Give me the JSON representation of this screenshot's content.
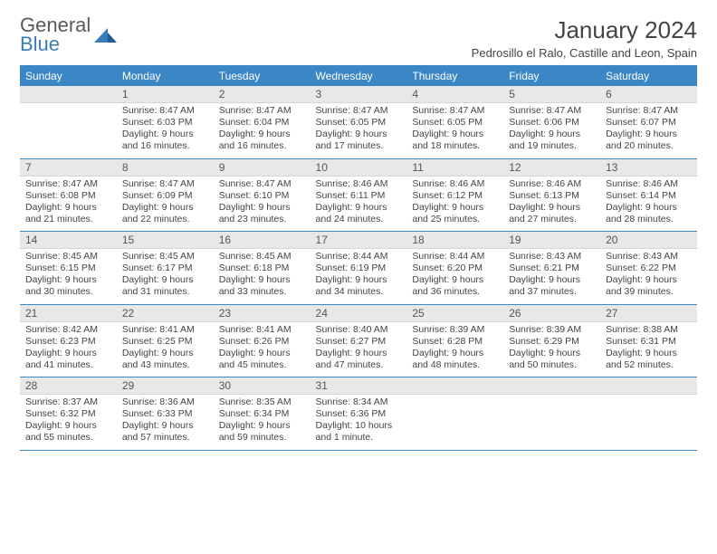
{
  "logo": {
    "word1": "General",
    "word2": "Blue"
  },
  "title": "January 2024",
  "subtitle": "Pedrosillo el Ralo, Castille and Leon, Spain",
  "day_headers": [
    "Sunday",
    "Monday",
    "Tuesday",
    "Wednesday",
    "Thursday",
    "Friday",
    "Saturday"
  ],
  "colors": {
    "header_bg": "#3b86c4",
    "logo_blue": "#3b7dbb",
    "daynum_bg": "#e8e8e8",
    "rule": "#3b86c4",
    "text": "#444444"
  },
  "fonts": {
    "title_size": 26,
    "subtitle_size": 13,
    "header_size": 12,
    "daynum_size": 12,
    "body_size": 10.5
  },
  "weeks": [
    [
      null,
      {
        "n": "1",
        "r": "Sunrise: 8:47 AM",
        "s": "Sunset: 6:03 PM",
        "d1": "Daylight: 9 hours",
        "d2": "and 16 minutes."
      },
      {
        "n": "2",
        "r": "Sunrise: 8:47 AM",
        "s": "Sunset: 6:04 PM",
        "d1": "Daylight: 9 hours",
        "d2": "and 16 minutes."
      },
      {
        "n": "3",
        "r": "Sunrise: 8:47 AM",
        "s": "Sunset: 6:05 PM",
        "d1": "Daylight: 9 hours",
        "d2": "and 17 minutes."
      },
      {
        "n": "4",
        "r": "Sunrise: 8:47 AM",
        "s": "Sunset: 6:05 PM",
        "d1": "Daylight: 9 hours",
        "d2": "and 18 minutes."
      },
      {
        "n": "5",
        "r": "Sunrise: 8:47 AM",
        "s": "Sunset: 6:06 PM",
        "d1": "Daylight: 9 hours",
        "d2": "and 19 minutes."
      },
      {
        "n": "6",
        "r": "Sunrise: 8:47 AM",
        "s": "Sunset: 6:07 PM",
        "d1": "Daylight: 9 hours",
        "d2": "and 20 minutes."
      }
    ],
    [
      {
        "n": "7",
        "r": "Sunrise: 8:47 AM",
        "s": "Sunset: 6:08 PM",
        "d1": "Daylight: 9 hours",
        "d2": "and 21 minutes."
      },
      {
        "n": "8",
        "r": "Sunrise: 8:47 AM",
        "s": "Sunset: 6:09 PM",
        "d1": "Daylight: 9 hours",
        "d2": "and 22 minutes."
      },
      {
        "n": "9",
        "r": "Sunrise: 8:47 AM",
        "s": "Sunset: 6:10 PM",
        "d1": "Daylight: 9 hours",
        "d2": "and 23 minutes."
      },
      {
        "n": "10",
        "r": "Sunrise: 8:46 AM",
        "s": "Sunset: 6:11 PM",
        "d1": "Daylight: 9 hours",
        "d2": "and 24 minutes."
      },
      {
        "n": "11",
        "r": "Sunrise: 8:46 AM",
        "s": "Sunset: 6:12 PM",
        "d1": "Daylight: 9 hours",
        "d2": "and 25 minutes."
      },
      {
        "n": "12",
        "r": "Sunrise: 8:46 AM",
        "s": "Sunset: 6:13 PM",
        "d1": "Daylight: 9 hours",
        "d2": "and 27 minutes."
      },
      {
        "n": "13",
        "r": "Sunrise: 8:46 AM",
        "s": "Sunset: 6:14 PM",
        "d1": "Daylight: 9 hours",
        "d2": "and 28 minutes."
      }
    ],
    [
      {
        "n": "14",
        "r": "Sunrise: 8:45 AM",
        "s": "Sunset: 6:15 PM",
        "d1": "Daylight: 9 hours",
        "d2": "and 30 minutes."
      },
      {
        "n": "15",
        "r": "Sunrise: 8:45 AM",
        "s": "Sunset: 6:17 PM",
        "d1": "Daylight: 9 hours",
        "d2": "and 31 minutes."
      },
      {
        "n": "16",
        "r": "Sunrise: 8:45 AM",
        "s": "Sunset: 6:18 PM",
        "d1": "Daylight: 9 hours",
        "d2": "and 33 minutes."
      },
      {
        "n": "17",
        "r": "Sunrise: 8:44 AM",
        "s": "Sunset: 6:19 PM",
        "d1": "Daylight: 9 hours",
        "d2": "and 34 minutes."
      },
      {
        "n": "18",
        "r": "Sunrise: 8:44 AM",
        "s": "Sunset: 6:20 PM",
        "d1": "Daylight: 9 hours",
        "d2": "and 36 minutes."
      },
      {
        "n": "19",
        "r": "Sunrise: 8:43 AM",
        "s": "Sunset: 6:21 PM",
        "d1": "Daylight: 9 hours",
        "d2": "and 37 minutes."
      },
      {
        "n": "20",
        "r": "Sunrise: 8:43 AM",
        "s": "Sunset: 6:22 PM",
        "d1": "Daylight: 9 hours",
        "d2": "and 39 minutes."
      }
    ],
    [
      {
        "n": "21",
        "r": "Sunrise: 8:42 AM",
        "s": "Sunset: 6:23 PM",
        "d1": "Daylight: 9 hours",
        "d2": "and 41 minutes."
      },
      {
        "n": "22",
        "r": "Sunrise: 8:41 AM",
        "s": "Sunset: 6:25 PM",
        "d1": "Daylight: 9 hours",
        "d2": "and 43 minutes."
      },
      {
        "n": "23",
        "r": "Sunrise: 8:41 AM",
        "s": "Sunset: 6:26 PM",
        "d1": "Daylight: 9 hours",
        "d2": "and 45 minutes."
      },
      {
        "n": "24",
        "r": "Sunrise: 8:40 AM",
        "s": "Sunset: 6:27 PM",
        "d1": "Daylight: 9 hours",
        "d2": "and 47 minutes."
      },
      {
        "n": "25",
        "r": "Sunrise: 8:39 AM",
        "s": "Sunset: 6:28 PM",
        "d1": "Daylight: 9 hours",
        "d2": "and 48 minutes."
      },
      {
        "n": "26",
        "r": "Sunrise: 8:39 AM",
        "s": "Sunset: 6:29 PM",
        "d1": "Daylight: 9 hours",
        "d2": "and 50 minutes."
      },
      {
        "n": "27",
        "r": "Sunrise: 8:38 AM",
        "s": "Sunset: 6:31 PM",
        "d1": "Daylight: 9 hours",
        "d2": "and 52 minutes."
      }
    ],
    [
      {
        "n": "28",
        "r": "Sunrise: 8:37 AM",
        "s": "Sunset: 6:32 PM",
        "d1": "Daylight: 9 hours",
        "d2": "and 55 minutes."
      },
      {
        "n": "29",
        "r": "Sunrise: 8:36 AM",
        "s": "Sunset: 6:33 PM",
        "d1": "Daylight: 9 hours",
        "d2": "and 57 minutes."
      },
      {
        "n": "30",
        "r": "Sunrise: 8:35 AM",
        "s": "Sunset: 6:34 PM",
        "d1": "Daylight: 9 hours",
        "d2": "and 59 minutes."
      },
      {
        "n": "31",
        "r": "Sunrise: 8:34 AM",
        "s": "Sunset: 6:36 PM",
        "d1": "Daylight: 10 hours",
        "d2": "and 1 minute."
      },
      null,
      null,
      null
    ]
  ]
}
